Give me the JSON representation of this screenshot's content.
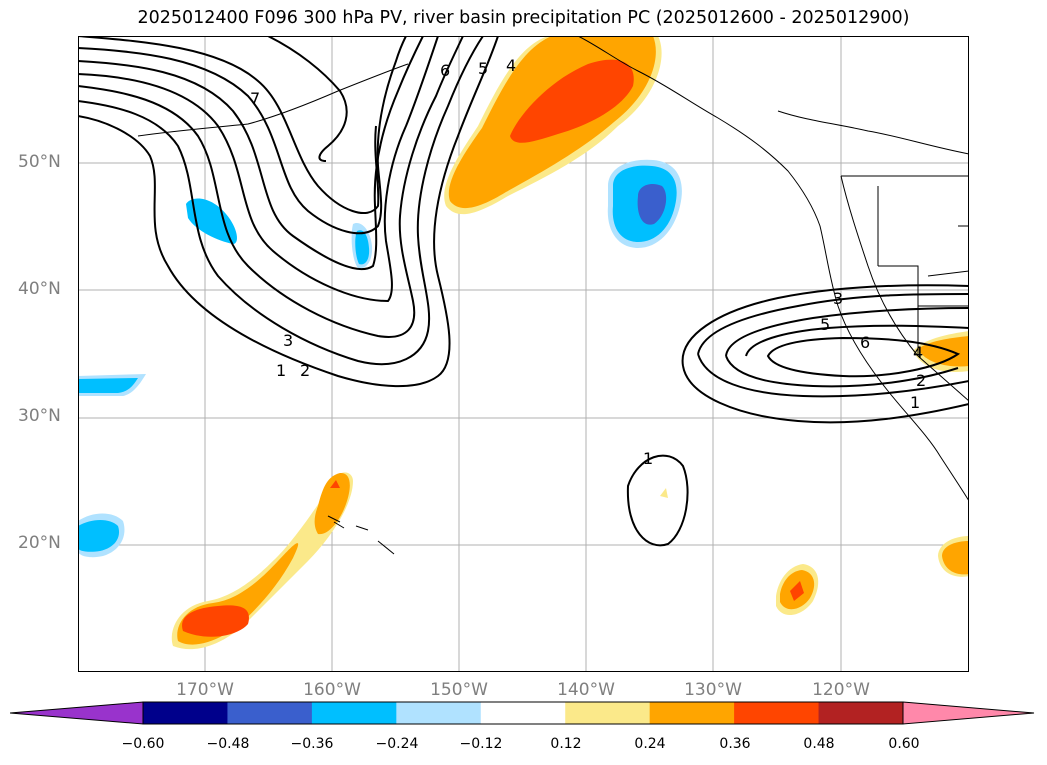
{
  "title": "2025012400 F096 300 hPa PV, river basin precipitation PC (2025012600 - 2025012900)",
  "lat_labels": [
    "50°N",
    "40°N",
    "30°N",
    "20°N"
  ],
  "lon_labels": [
    "170°W",
    "160°W",
    "150°W",
    "140°W",
    "130°W",
    "120°W"
  ],
  "contour_labels": [
    "7",
    "6",
    "5",
    "4",
    "3",
    "2",
    "1",
    "1",
    "3",
    "5",
    "6",
    "4",
    "2",
    "1"
  ],
  "colorbar": {
    "ticks": [
      "−0.60",
      "−0.48",
      "−0.36",
      "−0.24",
      "−0.12",
      "0.12",
      "0.24",
      "0.36",
      "0.48",
      "0.60"
    ],
    "colors": [
      "#9933cc",
      "#00008b",
      "#3a5fcd",
      "#00bfff",
      "#b0e2ff",
      "#ffffff",
      "#fbe98a",
      "#ffa500",
      "#ff4500",
      "#b22222",
      "#ff88aa"
    ]
  }
}
